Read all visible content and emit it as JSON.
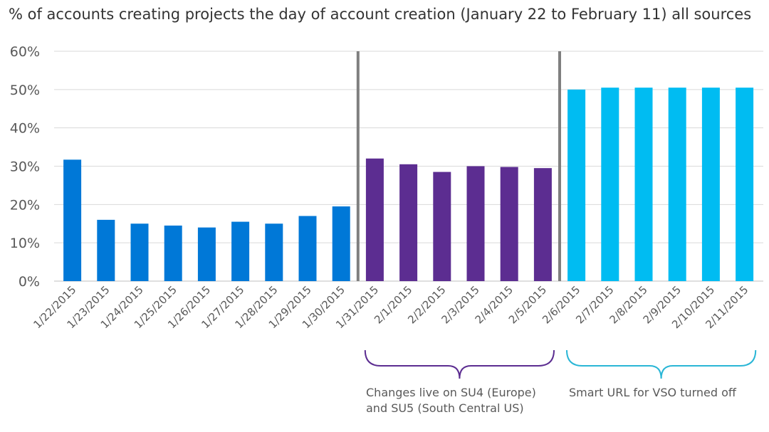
{
  "chart_data": {
    "type": "bar",
    "title": "% of accounts creating projects the day of account creation (January 22 to February 11) all sources",
    "xlabel": "",
    "ylabel": "",
    "ylim": [
      0,
      60
    ],
    "yticks": [
      "0%",
      "10%",
      "20%",
      "30%",
      "40%",
      "50%",
      "60%"
    ],
    "grid": true,
    "categories": [
      "1/22/2015",
      "1/23/2015",
      "1/24/2015",
      "1/25/2015",
      "1/26/2015",
      "1/27/2015",
      "1/28/2015",
      "1/29/2015",
      "1/30/2015",
      "1/31/2015",
      "2/1/2015",
      "2/2/2015",
      "2/3/2015",
      "2/4/2015",
      "2/5/2015",
      "2/6/2015",
      "2/7/2015",
      "2/8/2015",
      "2/9/2015",
      "2/10/2015",
      "2/11/2015"
    ],
    "values": [
      31.7,
      16.0,
      15.0,
      14.5,
      14.0,
      15.5,
      15.0,
      17.0,
      19.5,
      32.0,
      30.5,
      28.5,
      30.0,
      29.8,
      29.5,
      50.0,
      50.5,
      50.5,
      50.5,
      50.5,
      50.5
    ],
    "colors": [
      "#0078d7",
      "#0078d7",
      "#0078d7",
      "#0078d7",
      "#0078d7",
      "#0078d7",
      "#0078d7",
      "#0078d7",
      "#0078d7",
      "#5c2d91",
      "#5c2d91",
      "#5c2d91",
      "#5c2d91",
      "#5c2d91",
      "#5c2d91",
      "#00bcf2",
      "#00bcf2",
      "#00bcf2",
      "#00bcf2",
      "#00bcf2",
      "#00bcf2"
    ],
    "dividers_after_category": [
      "1/30/2015",
      "2/5/2015"
    ],
    "divider_color": "#7f7f7f",
    "annotations": [
      {
        "text": "Changes live on SU4 (Europe)\nand SU5 (South Central US)",
        "color": "#5c2d91",
        "from_category": "1/31/2015",
        "to_category": "2/5/2015"
      },
      {
        "text": "Smart URL for VSO turned off",
        "color": "#2ab6d6",
        "from_category": "2/6/2015",
        "to_category": "2/11/2015"
      }
    ]
  }
}
